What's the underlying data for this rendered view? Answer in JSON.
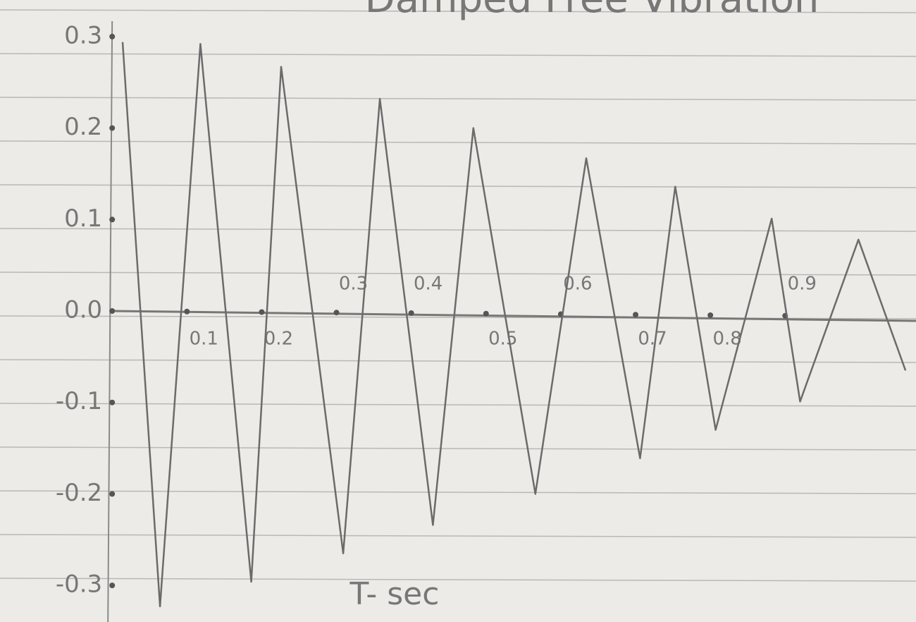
{
  "chart_data": {
    "type": "line",
    "title": "Damped Free Vibration",
    "x_label": "T- sec",
    "x": [
      0.014,
      0.064,
      0.118,
      0.186,
      0.226,
      0.309,
      0.358,
      0.429,
      0.483,
      0.566,
      0.634,
      0.706,
      0.753,
      0.807,
      0.882,
      0.92,
      0.998,
      1.061
    ],
    "values": [
      0.294,
      -0.323,
      0.292,
      -0.296,
      0.267,
      -0.265,
      0.232,
      -0.234,
      0.2,
      -0.2,
      0.167,
      -0.161,
      0.136,
      -0.13,
      0.101,
      -0.099,
      0.078,
      -0.065
    ],
    "color": "#6b6b6b",
    "xlim": [
      -0.15,
      1.075
    ],
    "ylim": [
      -0.34,
      0.34
    ],
    "xticks": [
      0.1,
      0.2,
      0.3,
      0.4,
      0.5,
      0.6,
      0.7,
      0.8,
      0.9
    ],
    "yticks": [
      0.3,
      0.2,
      0.1,
      {
        "value": 0,
        "label": "0.0"
      },
      -0.1,
      -0.2,
      -0.3
    ]
  }
}
